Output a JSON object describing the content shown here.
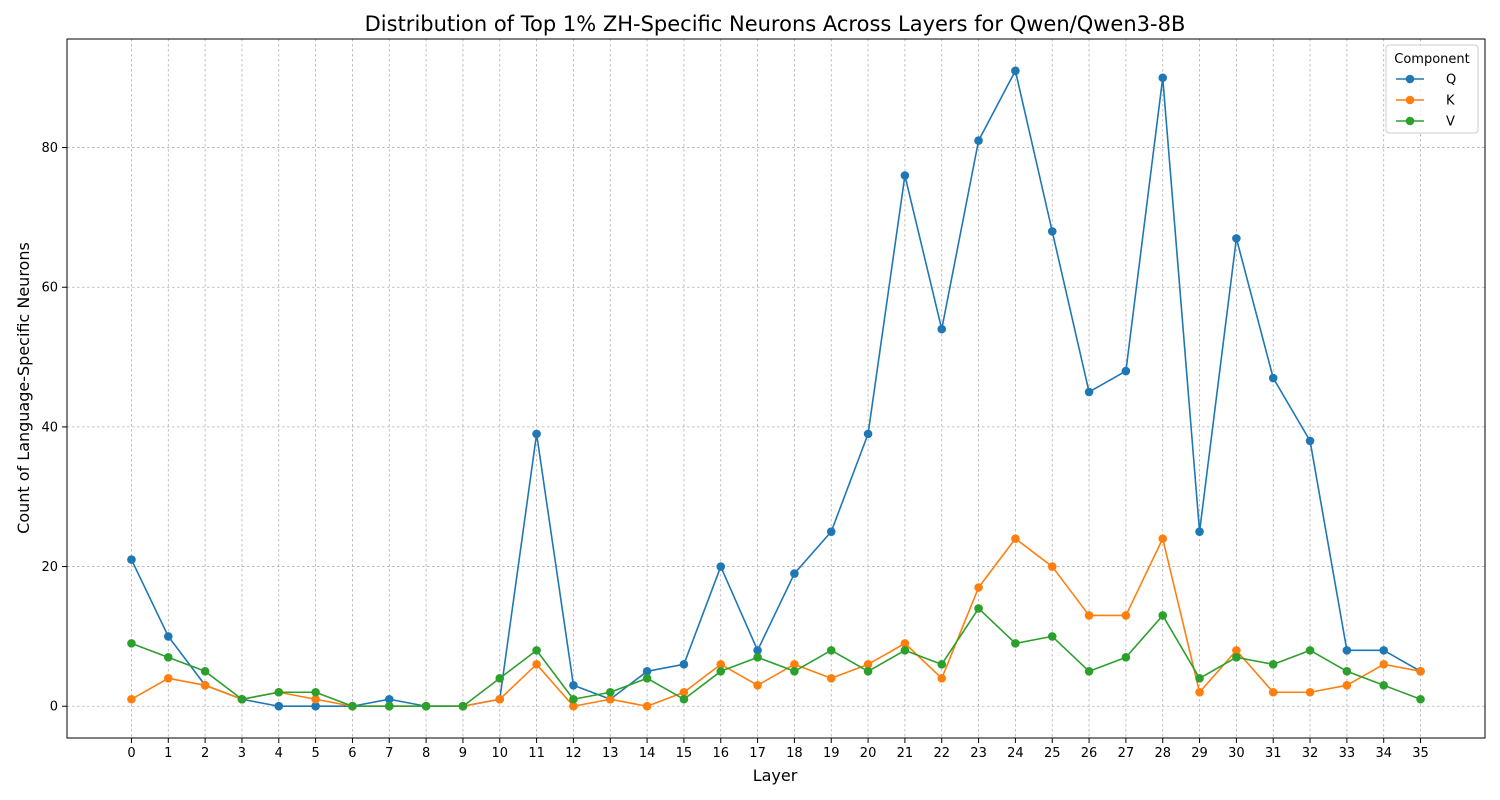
{
  "chart_data": {
    "type": "line",
    "title": "Distribution of Top 1% ZH-Specific Neurons Across Layers for Qwen/Qwen3-8B",
    "xlabel": "Layer",
    "ylabel": "Count of Language-Specific Neurons",
    "x": [
      0,
      1,
      2,
      3,
      4,
      5,
      6,
      7,
      8,
      9,
      10,
      11,
      12,
      13,
      14,
      15,
      16,
      17,
      18,
      19,
      20,
      21,
      22,
      23,
      24,
      25,
      26,
      27,
      28,
      29,
      30,
      31,
      32,
      33,
      34,
      35
    ],
    "xticks": [
      "0",
      "1",
      "2",
      "3",
      "4",
      "5",
      "6",
      "7",
      "8",
      "9",
      "10",
      "11",
      "12",
      "13",
      "14",
      "15",
      "16",
      "17",
      "18",
      "19",
      "20",
      "21",
      "22",
      "23",
      "24",
      "25",
      "26",
      "27",
      "28",
      "29",
      "30",
      "31",
      "32",
      "33",
      "34",
      "35"
    ],
    "yticks": [
      0,
      20,
      40,
      60,
      80
    ],
    "ylim": [
      -4.55,
      95.55
    ],
    "xlim": [
      -1.75,
      36.75
    ],
    "grid": true,
    "legend": {
      "title": "Component",
      "position": "top-right"
    },
    "series": [
      {
        "name": "Q",
        "color": "#1f77b4",
        "values": [
          21,
          10,
          3,
          1,
          0,
          0,
          0,
          1,
          0,
          0,
          1,
          39,
          3,
          1,
          5,
          6,
          20,
          8,
          19,
          25,
          39,
          76,
          54,
          81,
          91,
          68,
          45,
          48,
          90,
          25,
          67,
          47,
          38,
          8,
          8,
          5
        ]
      },
      {
        "name": "K",
        "color": "#ff7f0e",
        "values": [
          1,
          4,
          3,
          1,
          2,
          1,
          0,
          0,
          0,
          0,
          1,
          6,
          0,
          1,
          0,
          2,
          6,
          3,
          6,
          4,
          6,
          9,
          4,
          17,
          24,
          20,
          13,
          13,
          24,
          2,
          8,
          2,
          2,
          3,
          6,
          5
        ]
      },
      {
        "name": "V",
        "color": "#2ca02c",
        "values": [
          9,
          7,
          5,
          1,
          2,
          2,
          0,
          0,
          0,
          0,
          4,
          8,
          1,
          2,
          4,
          1,
          5,
          7,
          5,
          8,
          5,
          8,
          6,
          14,
          9,
          10,
          5,
          7,
          13,
          4,
          7,
          6,
          8,
          5,
          3,
          1
        ]
      }
    ]
  }
}
